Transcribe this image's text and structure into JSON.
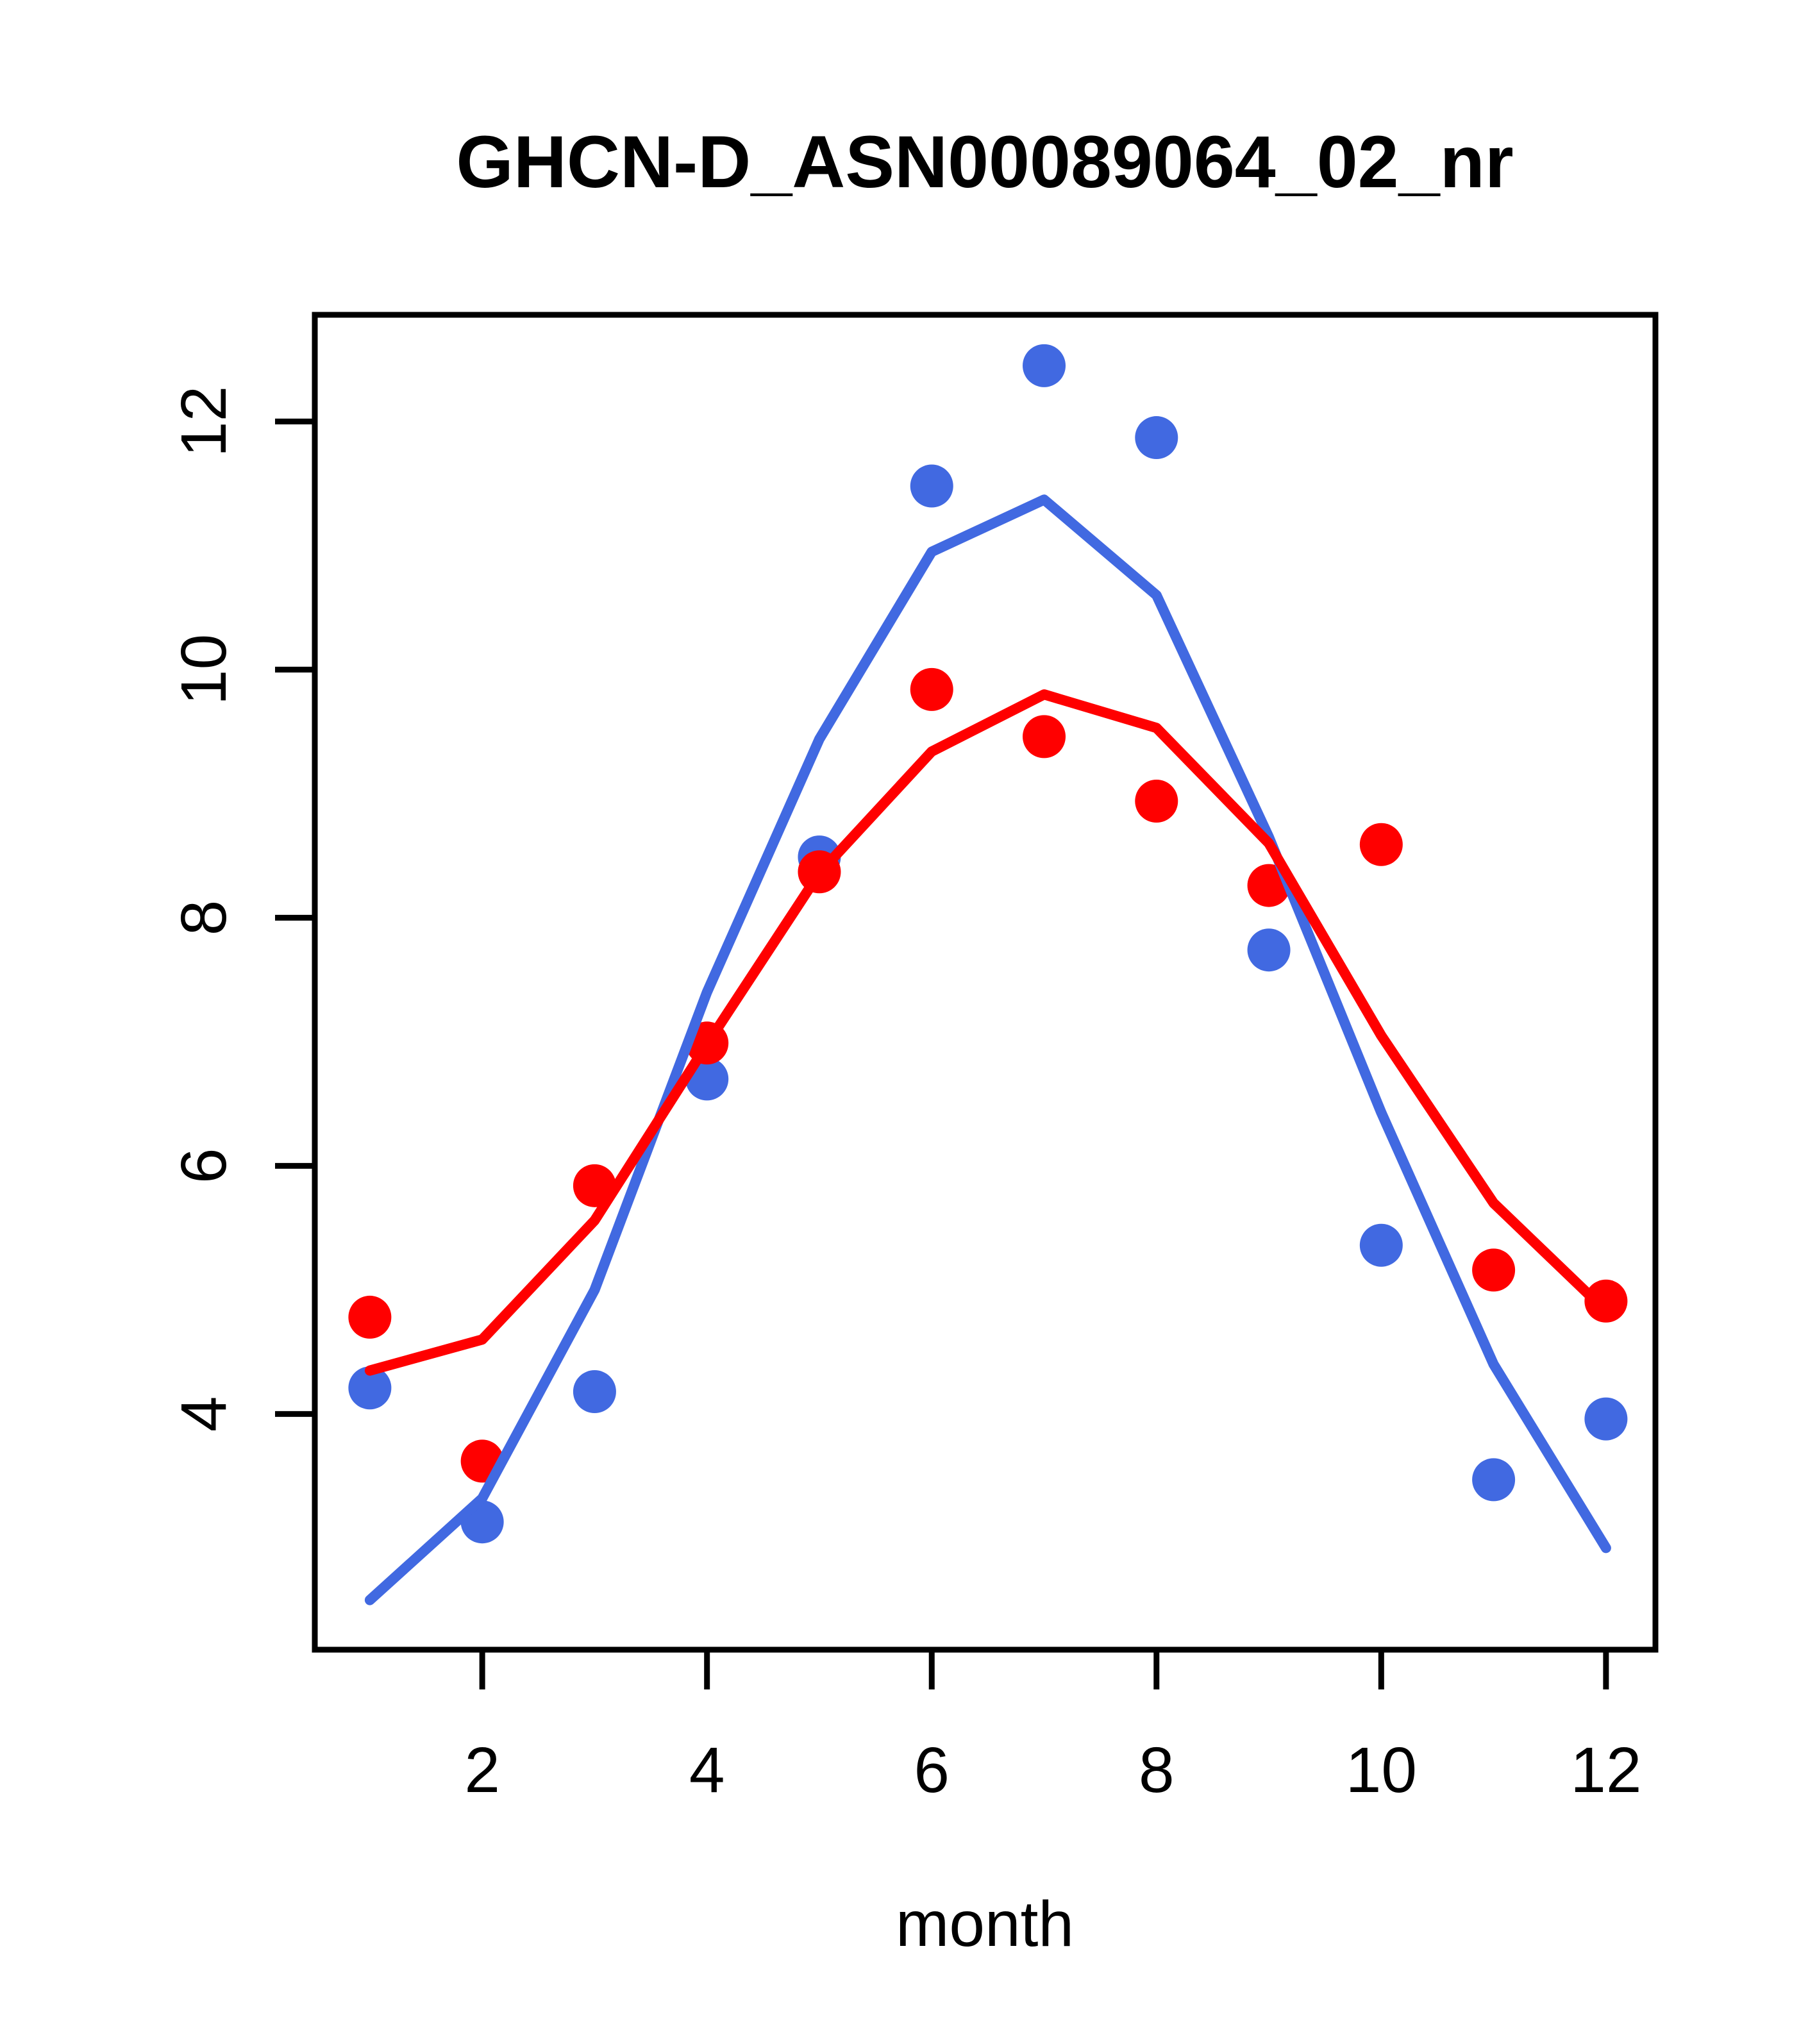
{
  "page": {
    "background_color": "#FFFFFF",
    "text_color": "#000000"
  },
  "chart_data": {
    "type": "line",
    "title": "GHCN-D_ASN00089064_02_nr",
    "xlabel": "month",
    "ylabel": "",
    "x": [
      1,
      2,
      3,
      4,
      5,
      6,
      7,
      8,
      9,
      10,
      11,
      12
    ],
    "xticks": [
      2,
      4,
      6,
      8,
      10,
      12
    ],
    "yticks": [
      4,
      6,
      8,
      10,
      12
    ],
    "xlim": [
      0.51,
      12.44
    ],
    "ylim": [
      2.1,
      12.86
    ],
    "grid": false,
    "legend": "none",
    "axis_color": "#000000",
    "series": [
      {
        "name": "blue-monthly-points",
        "kind": "points",
        "color": "#4169E1",
        "values": [
          4.21,
          3.13,
          4.18,
          6.7,
          8.49,
          11.48,
          12.45,
          11.87,
          7.74,
          5.36,
          3.47,
          3.96
        ]
      },
      {
        "name": "red-monthly-points",
        "kind": "points",
        "color": "#FF0000",
        "values": [
          4.78,
          3.62,
          5.84,
          6.99,
          8.37,
          9.84,
          9.46,
          8.94,
          8.26,
          8.59,
          5.16,
          4.91
        ]
      },
      {
        "name": "blue-fit-line",
        "kind": "line",
        "color": "#4169E1",
        "values": [
          2.5,
          3.32,
          5.0,
          7.4,
          9.44,
          10.95,
          11.37,
          10.6,
          8.65,
          6.43,
          4.4,
          2.92
        ]
      },
      {
        "name": "red-fit-line",
        "kind": "line",
        "color": "#FF0000",
        "values": [
          4.35,
          4.6,
          5.56,
          6.98,
          8.36,
          9.34,
          9.8,
          9.53,
          8.6,
          7.05,
          5.7,
          4.83
        ]
      }
    ]
  }
}
